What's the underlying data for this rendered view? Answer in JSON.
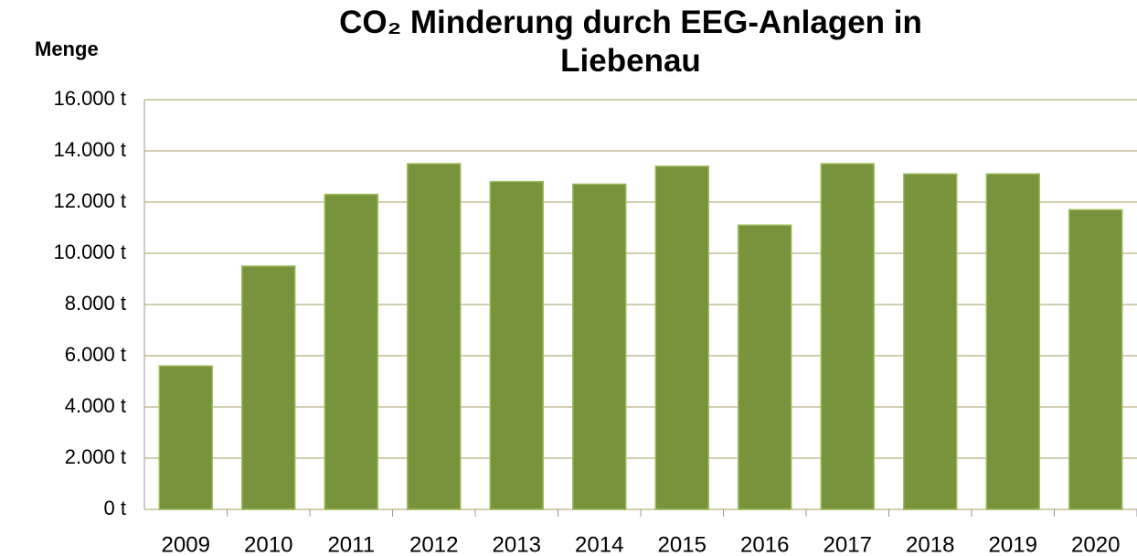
{
  "chart_data": {
    "type": "bar",
    "title": "CO₂ Minderung durch EEG-Anlagen in Liebenau",
    "y_label": "Menge",
    "categories": [
      "2009",
      "2010",
      "2011",
      "2012",
      "2013",
      "2014",
      "2015",
      "2016",
      "2017",
      "2018",
      "2019",
      "2020"
    ],
    "values": [
      5600,
      9500,
      12300,
      13500,
      12800,
      12700,
      13400,
      11100,
      13500,
      13100,
      13100,
      11700
    ],
    "color": "#77933c",
    "ylim": [
      0,
      16000
    ],
    "yticks": [
      {
        "value": 0,
        "label": "0 t"
      },
      {
        "value": 2000,
        "label": "2.000 t"
      },
      {
        "value": 4000,
        "label": "4.000 t"
      },
      {
        "value": 6000,
        "label": "6.000 t"
      },
      {
        "value": 8000,
        "label": "8.000 t"
      },
      {
        "value": 10000,
        "label": "10.000 t"
      },
      {
        "value": 12000,
        "label": "12.000 t"
      },
      {
        "value": 14000,
        "label": "14.000 t"
      },
      {
        "value": 16000,
        "label": "16.000 t"
      }
    ],
    "grid": true
  }
}
